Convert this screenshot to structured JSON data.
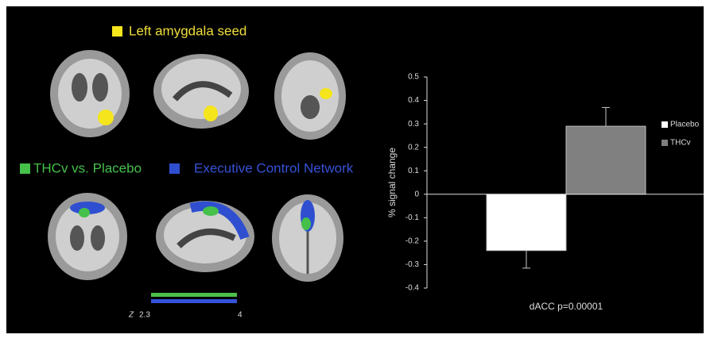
{
  "panel": {
    "seed_label": "Left amygdala seed",
    "contrast_label": "THCv vs. Placebo",
    "network_label": "Executive Control Network",
    "colorbar": {
      "label": "Z",
      "min": "2.3",
      "max": "4"
    }
  },
  "chart_data": {
    "type": "bar",
    "categories": [
      "dACC  p=0.00001"
    ],
    "y_label": "% signal change",
    "series": [
      {
        "name": "Placebo",
        "color": "#ffffff",
        "values": [
          -0.24
        ],
        "errors": [
          0.075
        ]
      },
      {
        "name": "THCv",
        "color": "#808080",
        "values": [
          0.29
        ],
        "errors": [
          0.08
        ]
      }
    ],
    "ylim": [
      -0.4,
      0.5
    ],
    "yticks": [
      -0.4,
      -0.3,
      -0.2,
      -0.1,
      0,
      0.1,
      0.2,
      0.3,
      0.4,
      0.5
    ],
    "error_color": "#c8c8c8",
    "legend": "right"
  }
}
